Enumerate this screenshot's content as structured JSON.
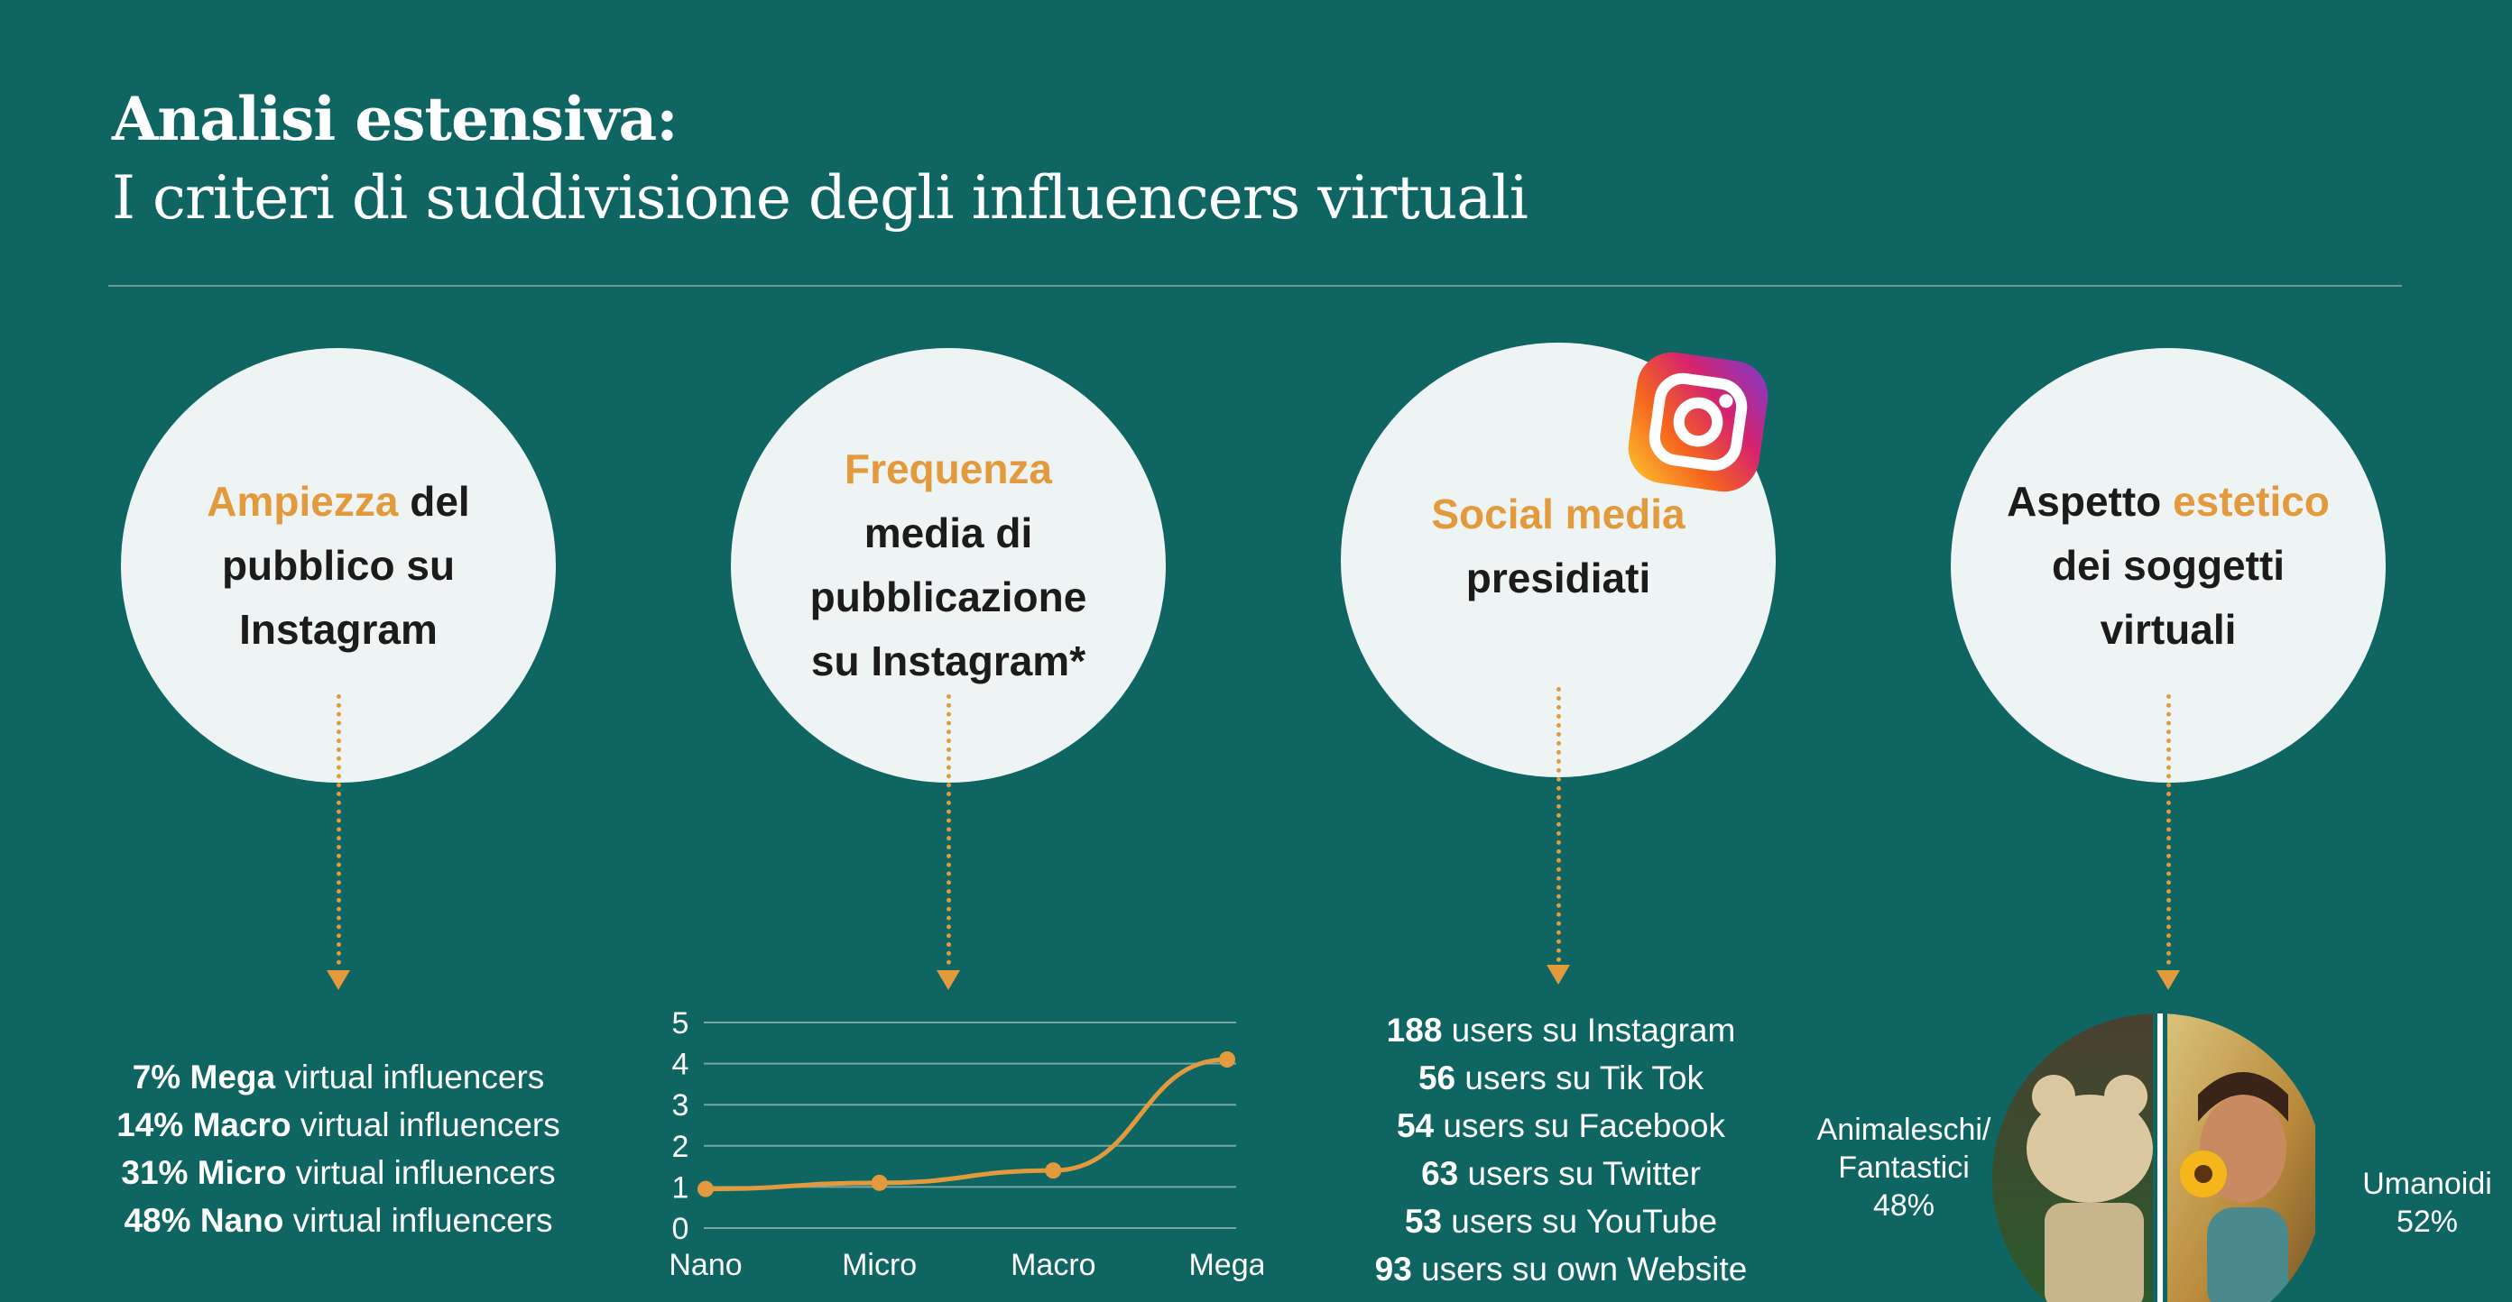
{
  "header": {
    "title": "Analisi estensiva:",
    "subtitle": "I criteri di suddivisione degli influencers virtuali"
  },
  "colors": {
    "background": "#0e6562",
    "accent": "#e39a3c",
    "circle": "#eef4f4"
  },
  "criteria": [
    {
      "pre": "",
      "hl": "Ampiezza",
      "post": " del pubblico su Instagram"
    },
    {
      "pre": "",
      "hl": "Frequenza",
      "post": " media di pubblicazione su Instagram*"
    },
    {
      "pre": "",
      "hl": "Social media",
      "post": " presidiati",
      "icon": "instagram-icon"
    },
    {
      "pre": "Aspetto ",
      "hl": "estetico",
      "post": " dei soggetti virtuali"
    }
  ],
  "audience": [
    {
      "pct": "7%",
      "tier": "Mega",
      "rest": " virtual influencers"
    },
    {
      "pct": "14%",
      "tier": "Macro",
      "rest": " virtual influencers"
    },
    {
      "pct": "31%",
      "tier": "Micro",
      "rest": " virtual influencers"
    },
    {
      "pct": "48%",
      "tier": "Nano",
      "rest": " virtual influencers"
    }
  ],
  "chart_data": {
    "type": "line",
    "categories": [
      "Nano",
      "Micro",
      "Macro",
      "Mega"
    ],
    "series": [
      {
        "values": [
          0.95,
          1.1,
          1.4,
          4.1
        ],
        "color": "#e39a3c"
      }
    ],
    "ylim": [
      0,
      5
    ],
    "yticks": [
      "0",
      "1",
      "2",
      "3",
      "4",
      "5"
    ],
    "grid": true,
    "title": "",
    "xlabel": "",
    "ylabel": ""
  },
  "social": [
    {
      "count": "188",
      "rest": " users su Instagram"
    },
    {
      "count": "56",
      "rest": " users su Tik Tok"
    },
    {
      "count": "54",
      "rest": " users su Facebook"
    },
    {
      "count": "63",
      "rest": " users su Twitter"
    },
    {
      "count": "53",
      "rest": " users su YouTube"
    },
    {
      "count": "93",
      "rest": " users su own Website"
    }
  ],
  "aesthetics": {
    "left_label_1": "Animaleschi/",
    "left_label_2": "Fantastici",
    "left_pct": "48%",
    "right_label": "Umanoidi",
    "right_pct": "52%",
    "left_value": 48,
    "right_value": 52
  }
}
